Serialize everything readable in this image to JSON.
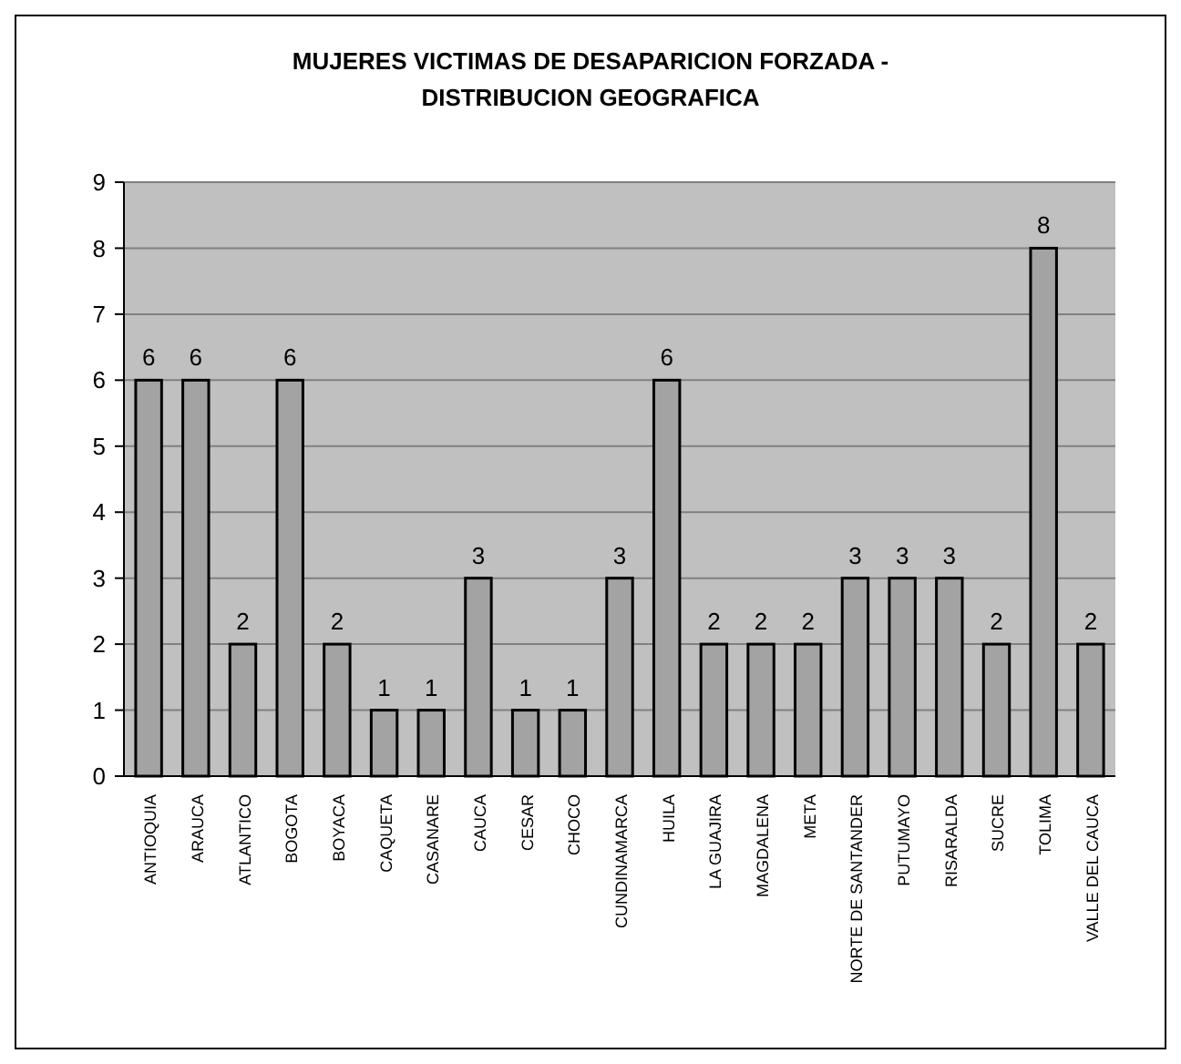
{
  "chart_data": {
    "type": "bar",
    "title": "MUJERES VICTIMAS DE DESAPARICION FORZADA - DISTRIBUCION GEOGRAFICA",
    "categories": [
      "ANTIOQUIA",
      "ARAUCA",
      "ATLANTICO",
      "BOGOTA",
      "BOYACA",
      "CAQUETA",
      "CASANARE",
      "CAUCA",
      "CESAR",
      "CHOCO",
      "CUNDINAMARCA",
      "HUILA",
      "LA GUAJIRA",
      "MAGDALENA",
      "META",
      "NORTE DE SANTANDER",
      "PUTUMAYO",
      "RISARALDA",
      "SUCRE",
      "TOLIMA",
      "VALLE DEL CAUCA"
    ],
    "values": [
      6,
      6,
      2,
      6,
      2,
      1,
      1,
      3,
      1,
      1,
      3,
      6,
      2,
      2,
      2,
      3,
      3,
      3,
      2,
      8,
      2
    ],
    "color": "#a3a3a3",
    "ylim": [
      0,
      9
    ],
    "yticks": [
      0,
      1,
      2,
      3,
      4,
      5,
      6,
      7,
      8,
      9
    ],
    "grid": "y",
    "data_labels": true
  }
}
